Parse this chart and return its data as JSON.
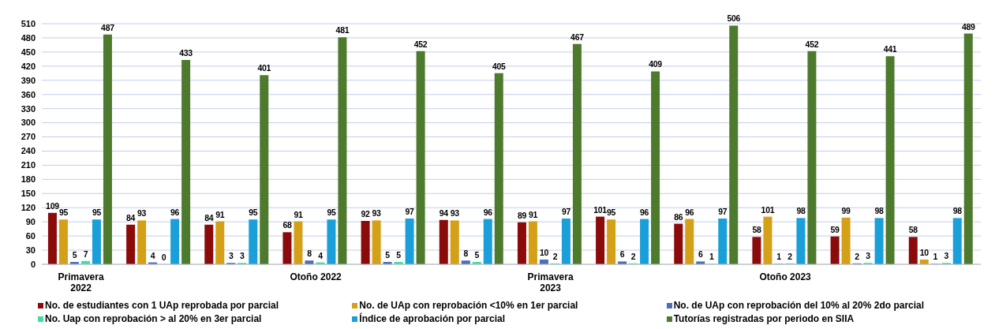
{
  "chart_data": {
    "type": "bar",
    "categories": [
      "Primavera 2022",
      null,
      null,
      "Otoño 2022",
      null,
      null,
      "Primavera 2023",
      null,
      null,
      "Otoño 2023",
      null,
      null
    ],
    "series": [
      {
        "name": "No. de estudiantes con 1 UAp reprobada por parcial",
        "color": "#8b0a0a",
        "values": [
          109,
          84,
          84,
          68,
          92,
          94,
          89,
          101,
          86,
          58,
          59,
          58
        ]
      },
      {
        "name": "No. de UAp con reprobación  <10% en 1er parcial",
        "color": "#d4a017",
        "values": [
          95,
          93,
          91,
          91,
          93,
          93,
          91,
          95,
          96,
          101,
          99,
          10
        ]
      },
      {
        "name": "No. de UAp con reprobación del 10% al 20% 2do parcial",
        "color": "#4a6fb5",
        "values": [
          5,
          4,
          3,
          8,
          5,
          8,
          10,
          6,
          6,
          1,
          2,
          1
        ]
      },
      {
        "name": "No. Uap con reprobación > al 20% en 3er parcial",
        "color": "#3ee0a0",
        "values": [
          7,
          0,
          3,
          4,
          5,
          5,
          2,
          2,
          1,
          2,
          3,
          3
        ]
      },
      {
        "name": "Índice de aprobación por parcial",
        "color": "#1a9fd9",
        "values": [
          95,
          96,
          95,
          95,
          97,
          96,
          97,
          96,
          97,
          98,
          98,
          98
        ]
      },
      {
        "name": "Tutorías registradas por periodo en SIIA",
        "color": "#4e7a2e",
        "values": [
          487,
          433,
          401,
          481,
          452,
          405,
          467,
          409,
          506,
          452,
          441,
          489
        ]
      }
    ],
    "ylim": [
      0,
      510
    ],
    "yticks": [
      0,
      30,
      60,
      90,
      120,
      150,
      180,
      210,
      240,
      270,
      300,
      330,
      360,
      390,
      420,
      450,
      480,
      510
    ],
    "grid": "y",
    "legend": "bottom",
    "data_labels": true
  }
}
